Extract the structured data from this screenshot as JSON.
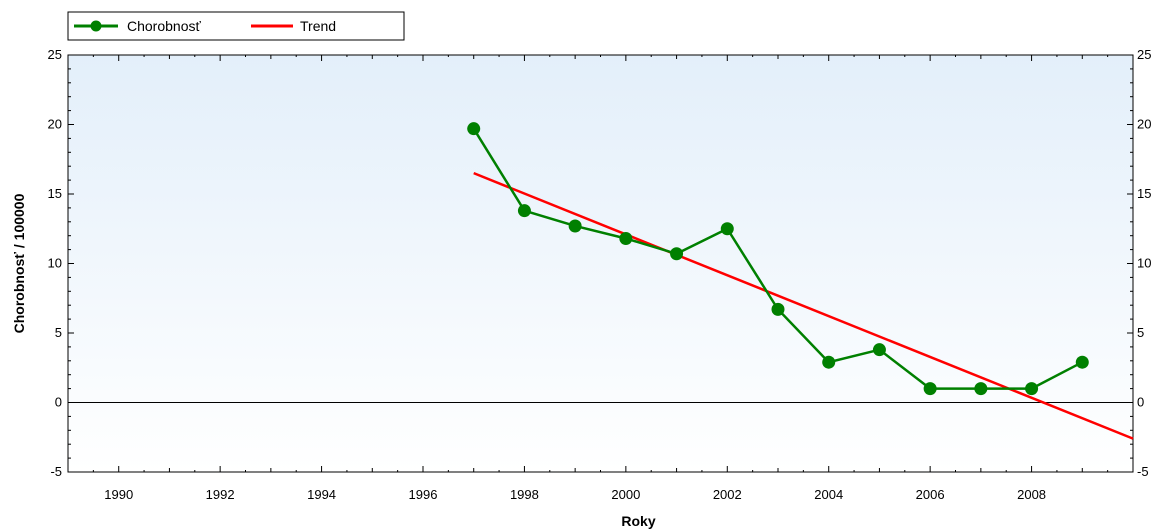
{
  "chart_data": {
    "type": "line",
    "xlabel": "Roky",
    "ylabel": "Chorobnosť / 100000",
    "xlim": [
      1989,
      2010
    ],
    "ylim": [
      -5,
      25
    ],
    "x_ticks": [
      1990,
      1992,
      1994,
      1996,
      1998,
      2000,
      2002,
      2004,
      2006,
      2008
    ],
    "y_ticks": [
      -5,
      0,
      5,
      10,
      15,
      20,
      25
    ],
    "legend_position": "top-left",
    "series": [
      {
        "name": "Chorobnosť",
        "color": "#008000",
        "marker": "circle",
        "x": [
          1997,
          1998,
          1999,
          2000,
          2001,
          2002,
          2003,
          2004,
          2005,
          2006,
          2007,
          2008,
          2009
        ],
        "y": [
          19.7,
          13.8,
          12.7,
          11.8,
          10.7,
          12.5,
          6.7,
          2.9,
          3.8,
          1.0,
          1.0,
          1.0,
          2.9
        ]
      },
      {
        "name": "Trend",
        "color": "#ff0000",
        "marker": "none",
        "x": [
          1997,
          2010
        ],
        "y": [
          16.5,
          -2.6
        ]
      }
    ]
  }
}
